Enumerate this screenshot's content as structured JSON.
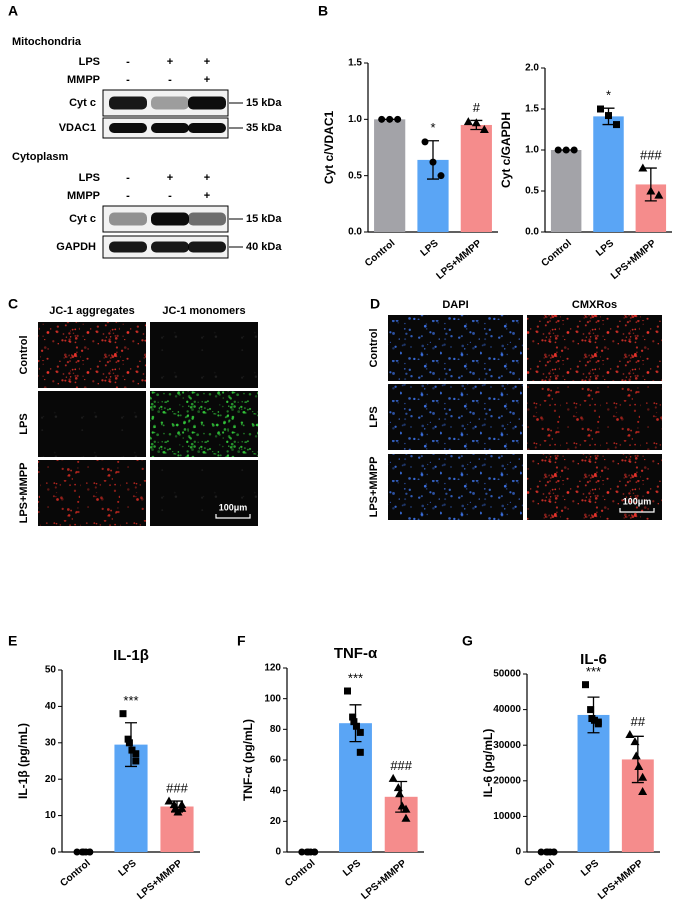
{
  "panel_labels": [
    "A",
    "B",
    "C",
    "D",
    "E",
    "F",
    "G"
  ],
  "blot": {
    "sections": [
      {
        "title": "Mitochondria",
        "rows": [
          {
            "label": "LPS",
            "marks": [
              "-",
              "+",
              "+"
            ]
          },
          {
            "label": "MMPP",
            "marks": [
              "-",
              "-",
              "+"
            ]
          }
        ],
        "bands": [
          {
            "label": "Cyt c",
            "size": "15 kDa"
          },
          {
            "label": "VDAC1",
            "size": "35 kDa"
          }
        ]
      },
      {
        "title": "Cytoplasm",
        "rows": [
          {
            "label": "LPS",
            "marks": [
              "-",
              "+",
              "+"
            ]
          },
          {
            "label": "MMPP",
            "marks": [
              "-",
              "-",
              "+"
            ]
          }
        ],
        "bands": [
          {
            "label": "Cyt c",
            "size": "15 kDa"
          },
          {
            "label": "GAPDH",
            "size": "40 kDa"
          }
        ]
      }
    ]
  },
  "imaging": [
    {
      "columns": [
        "JC-1 aggregates",
        "JC-1 monomers"
      ],
      "rows": [
        "Control",
        "LPS",
        "LPS+MMPP"
      ],
      "scale_bar": "100μm"
    },
    {
      "columns": [
        "DAPI",
        "CMXRos"
      ],
      "rows": [
        "Control",
        "LPS",
        "LPS+MMPP"
      ],
      "scale_bar": "100μm"
    }
  ],
  "chart_data": [
    {
      "type": "bar",
      "ylabel": "Cyt c/VDAC1",
      "categories": [
        "Control",
        "LPS",
        "LPS+MMPP"
      ],
      "values": [
        1.0,
        0.64,
        0.95
      ],
      "errors": [
        0,
        0.17,
        0.04
      ],
      "points": [
        [
          1.0,
          1.0,
          1.0
        ],
        [
          0.8,
          0.62,
          0.5
        ],
        [
          0.98,
          0.97,
          0.91
        ]
      ],
      "annotations": [
        null,
        "*",
        "#"
      ],
      "colors": [
        "#a3a3a8",
        "#5aa5f5",
        "#f58c8c"
      ],
      "markers": [
        "circle",
        "circle",
        "triangle"
      ],
      "ylim": [
        0,
        1.5
      ],
      "yticks": [
        {
          "value": 0,
          "label": "0.0"
        },
        0.5,
        {
          "value": 1,
          "label": "1.0"
        },
        1.5
      ]
    },
    {
      "type": "bar",
      "ylabel": "Cyt c/GAPDH",
      "categories": [
        "Control",
        "LPS",
        "LPS+MMPP"
      ],
      "values": [
        1.0,
        1.41,
        0.58
      ],
      "errors": [
        0,
        0.1,
        0.2
      ],
      "points": [
        [
          1.0,
          1.0,
          1.0
        ],
        [
          1.5,
          1.42,
          1.31
        ],
        [
          0.78,
          0.5,
          0.45
        ]
      ],
      "annotations": [
        null,
        "*",
        "###"
      ],
      "colors": [
        "#a3a3a8",
        "#5aa5f5",
        "#f58c8c"
      ],
      "markers": [
        "circle",
        "square",
        "triangle"
      ],
      "ylim": [
        0,
        2
      ],
      "yticks": [
        {
          "value": 0,
          "label": "0.0"
        },
        0.5,
        {
          "value": 1,
          "label": "1.0"
        },
        1.5,
        {
          "value": 2,
          "label": "2.0"
        }
      ]
    },
    {
      "type": "bar",
      "title": "IL-1β",
      "ylabel": "IL-1β (pg/mL)",
      "categories": [
        "Control",
        "LPS",
        "LPS+MMPP"
      ],
      "values": [
        0,
        29.5,
        12.5
      ],
      "errors": [
        0,
        6,
        1.5
      ],
      "points": [
        [
          0,
          0,
          0,
          0,
          0,
          0
        ],
        [
          38,
          31,
          30,
          28,
          25,
          27
        ],
        [
          14,
          13,
          12,
          11,
          12,
          13
        ]
      ],
      "annotations": [
        null,
        "***",
        "###"
      ],
      "colors": [
        "#a3a3a8",
        "#5aa5f5",
        "#f58c8c"
      ],
      "markers": [
        "circle",
        "square",
        "triangle"
      ],
      "ylim": [
        0,
        50
      ],
      "yticks": [
        0,
        10,
        20,
        30,
        40,
        50
      ]
    },
    {
      "type": "bar",
      "title": "TNF-α",
      "ylabel": "TNF-α (pg/mL)",
      "categories": [
        "Control",
        "LPS",
        "LPS+MMPP"
      ],
      "values": [
        0,
        84,
        36
      ],
      "errors": [
        0,
        12,
        10
      ],
      "points": [
        [
          0,
          0,
          0,
          0,
          0,
          0
        ],
        [
          105,
          88,
          85,
          82,
          78,
          65
        ],
        [
          48,
          42,
          38,
          30,
          28,
          22
        ]
      ],
      "annotations": [
        null,
        "***",
        "###"
      ],
      "colors": [
        "#a3a3a8",
        "#5aa5f5",
        "#f58c8c"
      ],
      "markers": [
        "circle",
        "square",
        "triangle"
      ],
      "ylim": [
        0,
        120
      ],
      "yticks": [
        0,
        20,
        40,
        60,
        80,
        100,
        120
      ]
    },
    {
      "type": "bar",
      "title": "IL-6",
      "ylabel": "IL-6 (pg/mL)",
      "categories": [
        "Control",
        "LPS",
        "LPS+MMPP"
      ],
      "values": [
        0,
        38500,
        26000
      ],
      "errors": [
        0,
        5000,
        6500
      ],
      "points": [
        [
          0,
          0,
          0,
          0,
          0,
          0
        ],
        [
          47000,
          40000,
          37500,
          37000,
          36500,
          36000
        ],
        [
          33000,
          31000,
          27000,
          24000,
          21000,
          17000
        ]
      ],
      "annotations": [
        null,
        "***",
        "##"
      ],
      "colors": [
        "#a3a3a8",
        "#5aa5f5",
        "#f58c8c"
      ],
      "markers": [
        "circle",
        "square",
        "triangle"
      ],
      "ylim": [
        0,
        50000
      ],
      "yticks": [
        0,
        10000,
        20000,
        30000,
        40000,
        50000
      ]
    }
  ]
}
